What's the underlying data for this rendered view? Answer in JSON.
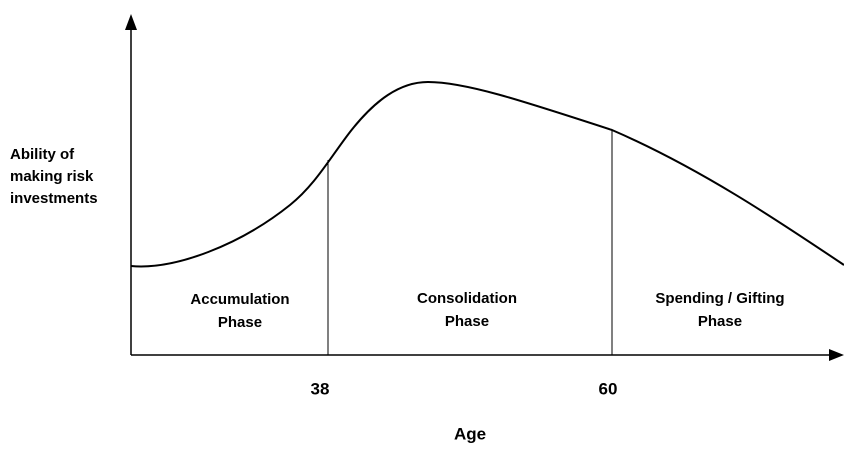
{
  "y_axis_label": [
    "Ability of",
    "making risk",
    "investments"
  ],
  "x_axis_label": "Age",
  "x_ticks": [
    "38",
    "60"
  ],
  "phases": [
    {
      "lines": [
        "Accumulation",
        "Phase"
      ]
    },
    {
      "lines": [
        "Consolidation",
        "Phase"
      ]
    },
    {
      "lines": [
        "Spending / Gifting",
        "Phase"
      ]
    }
  ]
}
